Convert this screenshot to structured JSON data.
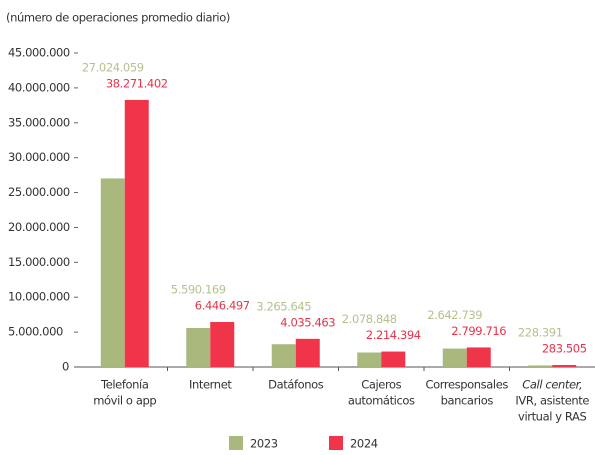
{
  "chart_data": {
    "type": "bar",
    "subtitle": "(número de operaciones promedio diario)",
    "categories": [
      [
        "Telefonía",
        "móvil o app"
      ],
      [
        "Internet"
      ],
      [
        "Datáfonos"
      ],
      [
        "Cajeros",
        "automáticos"
      ],
      [
        "Corresponsales",
        "bancarios"
      ],
      [
        "Call center,",
        "IVR, asistente",
        "virtual y RAS"
      ]
    ],
    "series": [
      {
        "name": "2023",
        "color": "#a9b97e",
        "label_color": "#b5c18d",
        "values": [
          27024059,
          5590169,
          3265645,
          2078848,
          2642739,
          228391
        ],
        "value_labels": [
          "27.024.059",
          "5.590.169",
          "3.265.645",
          "2.078.848",
          "2.642.739",
          "228.391"
        ]
      },
      {
        "name": "2024",
        "color": "#f0344a",
        "label_color": "#e8334a",
        "values": [
          38271402,
          6446497,
          4035463,
          2214394,
          2799716,
          283505
        ],
        "value_labels": [
          "38.271.402",
          "6.446.497",
          "4.035.463",
          "2.214.394",
          "2.799.716",
          "283.505"
        ]
      }
    ],
    "ylim": [
      0,
      45000000
    ],
    "yticks": [
      0,
      {
        "value": 5000000,
        "label": "5.000.000"
      },
      {
        "value": 10000000,
        "label": "10.000.000"
      },
      {
        "value": 15000000,
        "label": "15.000.000"
      },
      {
        "value": 20000000,
        "label": "20.000.000"
      },
      {
        "value": 25000000,
        "label": "25.000.000"
      },
      {
        "value": 30000000,
        "label": "30.000.000"
      },
      {
        "value": 35000000,
        "label": "35.000.000"
      },
      {
        "value": 40000000,
        "label": "40.000.000"
      },
      {
        "value": 45000000,
        "label": "45.000.000"
      }
    ],
    "grid": false
  }
}
